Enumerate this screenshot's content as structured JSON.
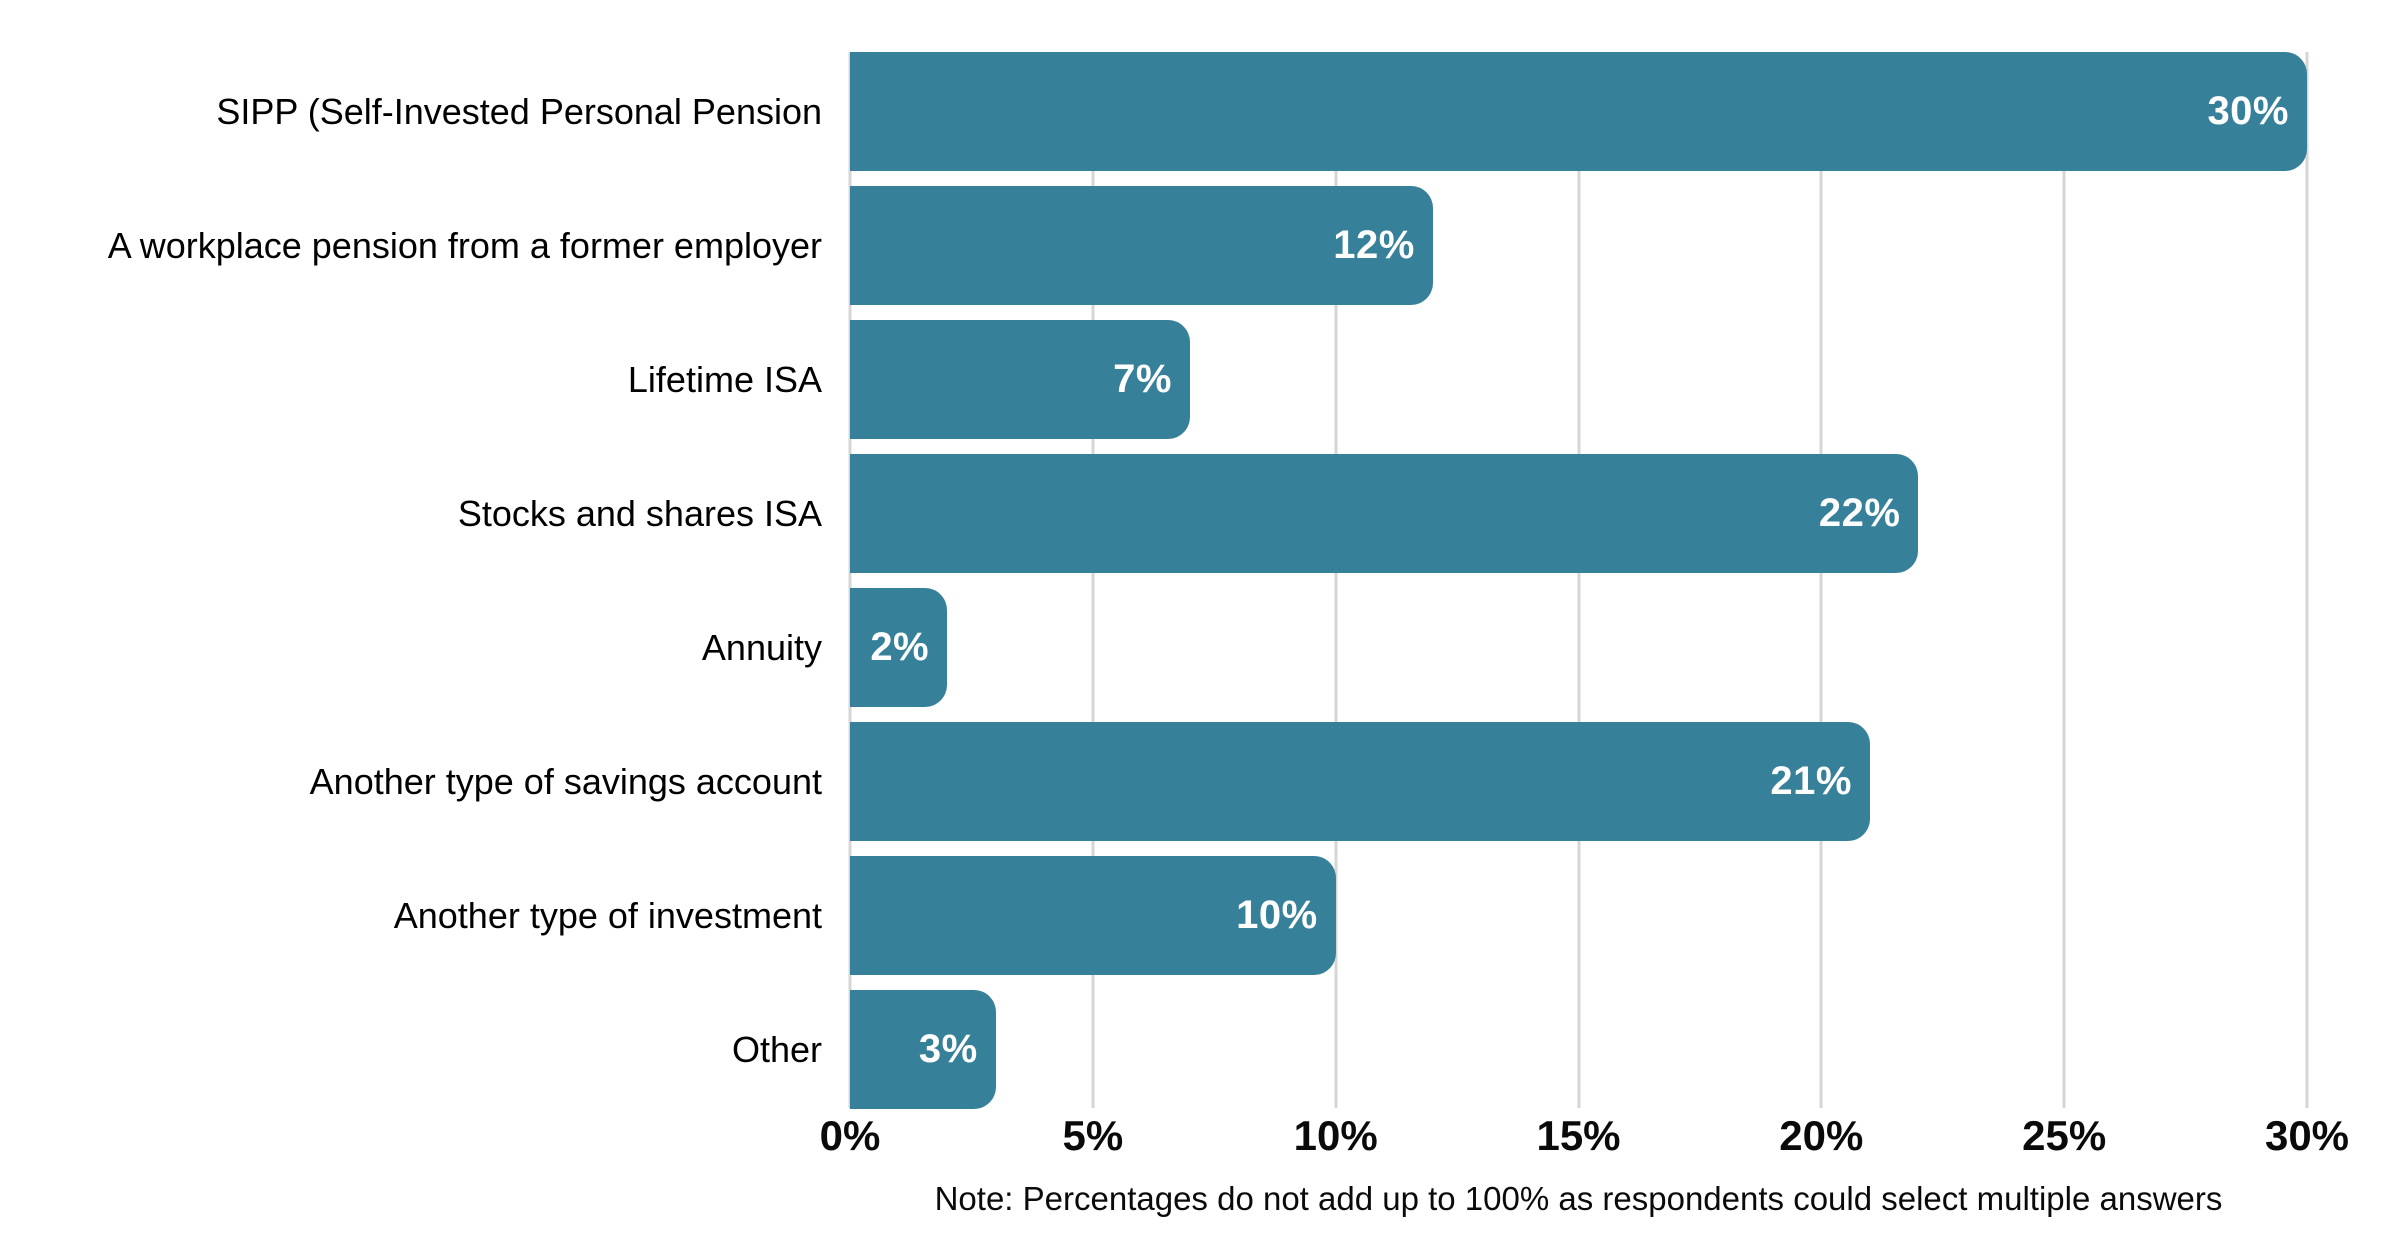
{
  "chart_data": {
    "type": "bar",
    "orientation": "horizontal",
    "title": "",
    "categories": [
      "SIPP (Self-Invested Personal Pension",
      "A workplace pension from a former employer",
      "Lifetime ISA",
      "Stocks and shares ISA",
      "Annuity",
      "Another type of savings account",
      "Another type of investment",
      "Other"
    ],
    "values": [
      30,
      12,
      7,
      22,
      2,
      21,
      10,
      3
    ],
    "value_labels": [
      "30%",
      "12%",
      "7%",
      "22%",
      "2%",
      "21%",
      "10%",
      "3%"
    ],
    "xlabel": "",
    "ylabel": "",
    "xlim": [
      0,
      30
    ],
    "x_tick_values": [
      0,
      5,
      10,
      15,
      20,
      25,
      30
    ],
    "x_tick_labels": [
      "0%",
      "5%",
      "10%",
      "15%",
      "20%",
      "25%",
      "30%"
    ],
    "grid": "vertical-only",
    "legend": "none",
    "note": "Note: Percentages do not add up to 100% as respondents could select multiple answers",
    "colors": {
      "bar": "#37809A",
      "gridline": "#D6D6D6",
      "category_text": "#000000",
      "tick_text": "#0A0A0A",
      "value_text": "#FFFFFF",
      "background": "#FFFFFF"
    }
  }
}
